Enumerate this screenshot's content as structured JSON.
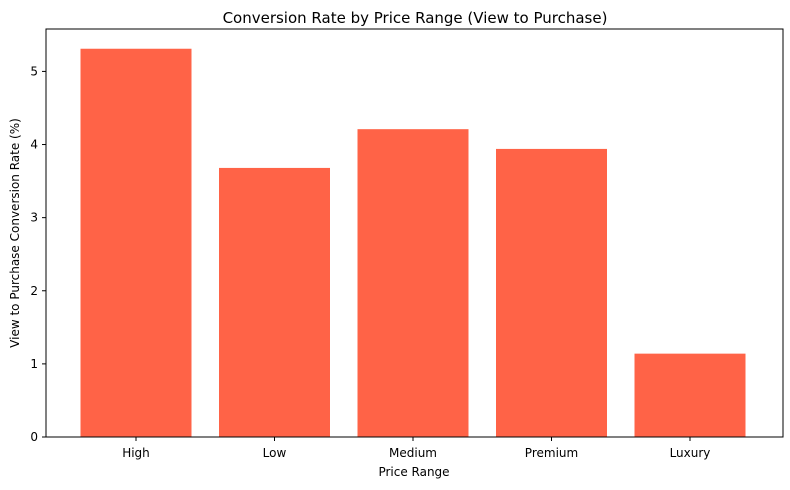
{
  "chart_data": {
    "type": "bar",
    "title": "Conversion Rate by Price Range (View to Purchase)",
    "xlabel": "Price Range",
    "ylabel": "View to Purchase Conversion Rate (%)",
    "categories": [
      "High",
      "Low",
      "Medium",
      "Premium",
      "Luxury"
    ],
    "values": [
      5.31,
      3.68,
      4.21,
      3.94,
      1.14
    ],
    "ylim": [
      0,
      5.58
    ],
    "yticks": [
      "0",
      "1",
      "2",
      "3",
      "4",
      "5"
    ],
    "bar_color": "#ff6347",
    "grid": false
  }
}
